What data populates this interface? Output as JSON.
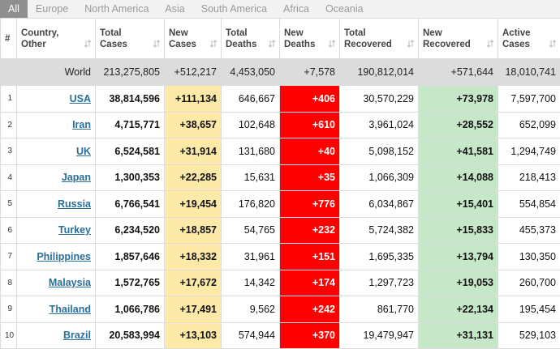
{
  "tabs": [
    "All",
    "Europe",
    "North America",
    "Asia",
    "South America",
    "Africa",
    "Oceania"
  ],
  "headers": [
    {
      "lines": [
        "#"
      ]
    },
    {
      "lines": [
        "Country,",
        "Other"
      ]
    },
    {
      "lines": [
        "Total",
        "Cases"
      ]
    },
    {
      "lines": [
        "New",
        "Cases"
      ]
    },
    {
      "lines": [
        "Total",
        "Deaths"
      ]
    },
    {
      "lines": [
        "New",
        "Deaths"
      ]
    },
    {
      "lines": [
        "Total",
        "Recovered"
      ]
    },
    {
      "lines": [
        "New",
        "Recovered"
      ]
    },
    {
      "lines": [
        "Active",
        "Cases"
      ]
    }
  ],
  "world": [
    "World",
    "213,275,805",
    "+512,217",
    "4,453,050",
    "+7,578",
    "190,812,014",
    "+571,644",
    "18,010,741"
  ],
  "rows": [
    [
      "1",
      "USA",
      "38,814,596",
      "+111,134",
      "646,667",
      "+406",
      "30,570,229",
      "+73,978",
      "7,597,700"
    ],
    [
      "2",
      "Iran",
      "4,715,771",
      "+38,657",
      "102,648",
      "+610",
      "3,961,024",
      "+28,552",
      "652,099"
    ],
    [
      "3",
      "UK",
      "6,524,581",
      "+31,914",
      "131,680",
      "+40",
      "5,098,152",
      "+41,581",
      "1,294,749"
    ],
    [
      "4",
      "Japan",
      "1,300,353",
      "+22,285",
      "15,631",
      "+35",
      "1,066,309",
      "+14,088",
      "218,413"
    ],
    [
      "5",
      "Russia",
      "6,766,541",
      "+19,454",
      "176,820",
      "+776",
      "6,034,867",
      "+15,401",
      "554,854"
    ],
    [
      "6",
      "Turkey",
      "6,234,520",
      "+18,857",
      "54,765",
      "+232",
      "5,724,382",
      "+15,833",
      "455,373"
    ],
    [
      "7",
      "Philippines",
      "1,857,646",
      "+18,332",
      "31,961",
      "+151",
      "1,695,335",
      "+13,794",
      "130,350"
    ],
    [
      "8",
      "Malaysia",
      "1,572,765",
      "+17,672",
      "14,342",
      "+174",
      "1,297,723",
      "+19,053",
      "260,700"
    ],
    [
      "9",
      "Thailand",
      "1,066,786",
      "+17,491",
      "9,562",
      "+242",
      "861,770",
      "+22,134",
      "195,454"
    ],
    [
      "10",
      "Brazil",
      "20,583,994",
      "+13,103",
      "574,944",
      "+370",
      "19,479,947",
      "+31,131",
      "529,103"
    ]
  ]
}
